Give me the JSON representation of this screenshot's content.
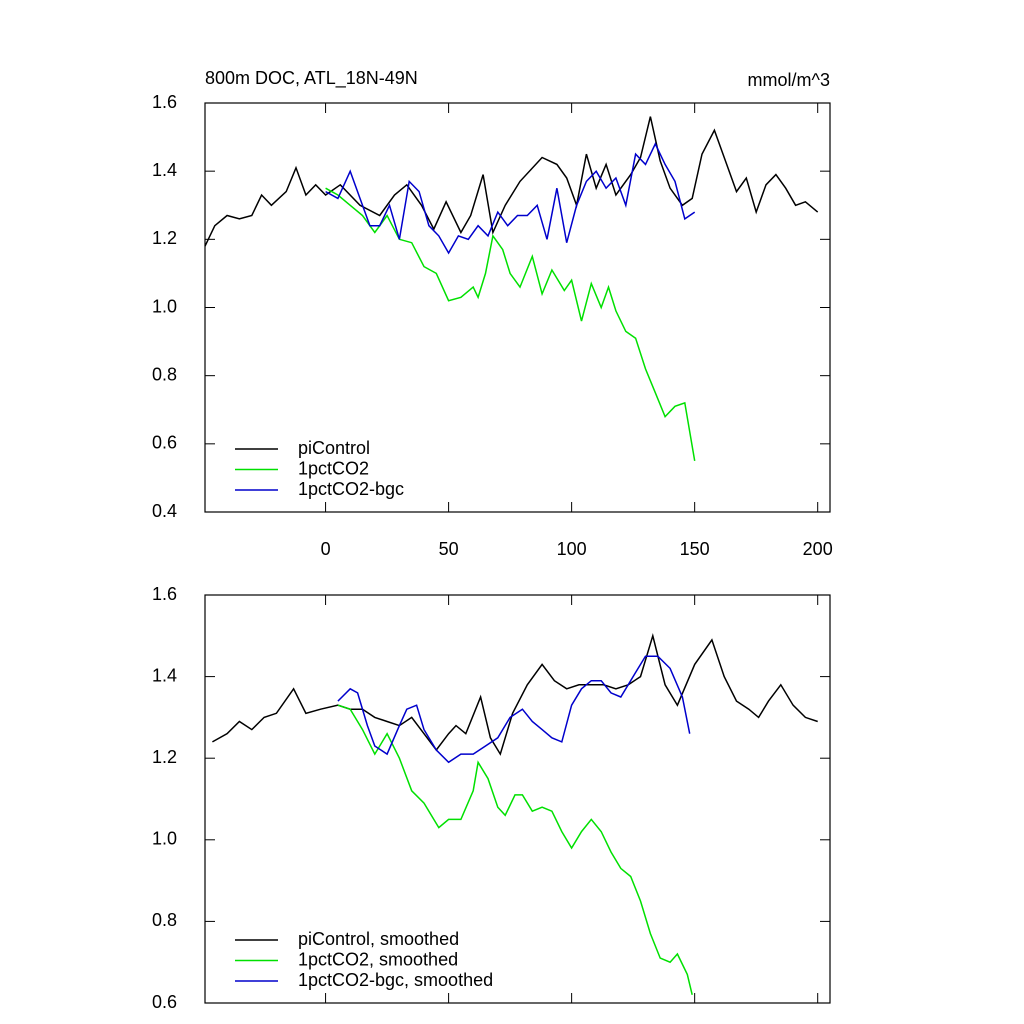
{
  "chart_data": [
    {
      "type": "line",
      "title": "800m DOC, ATL_18N-49N",
      "units": "mmol/m^3",
      "xlim": [
        -49,
        205
      ],
      "ylim": [
        0.4,
        1.6
      ],
      "xticks": [
        0,
        50,
        100,
        150,
        200
      ],
      "xtick_labels": true,
      "yticks": [
        0.4,
        0.6,
        0.8,
        {
          "value": 1.0,
          "label": "1.0"
        },
        1.2,
        1.4,
        1.6
      ],
      "legend": "lower left",
      "series": [
        {
          "name": "piControl",
          "color": "#000000",
          "x": [
            -49,
            -45,
            -40,
            -35,
            -30,
            -26,
            -22,
            -16,
            -12,
            -8,
            -4,
            0,
            6,
            14,
            22,
            28,
            33,
            39,
            44,
            49,
            55,
            59,
            64,
            68,
            73,
            79,
            88,
            94,
            98,
            102,
            106,
            110,
            114,
            118,
            124,
            128,
            132,
            136,
            140,
            145,
            149,
            153,
            158,
            163,
            167,
            171,
            175,
            179,
            183,
            187,
            191,
            195,
            200
          ],
          "values": [
            1.18,
            1.24,
            1.27,
            1.26,
            1.27,
            1.33,
            1.3,
            1.34,
            1.41,
            1.33,
            1.36,
            1.33,
            1.36,
            1.3,
            1.27,
            1.33,
            1.36,
            1.3,
            1.23,
            1.31,
            1.22,
            1.27,
            1.39,
            1.22,
            1.3,
            1.37,
            1.44,
            1.42,
            1.38,
            1.3,
            1.45,
            1.35,
            1.42,
            1.33,
            1.39,
            1.44,
            1.56,
            1.43,
            1.35,
            1.3,
            1.32,
            1.45,
            1.52,
            1.42,
            1.34,
            1.38,
            1.28,
            1.36,
            1.39,
            1.35,
            1.3,
            1.31,
            1.28
          ]
        },
        {
          "name": "1pctCO2",
          "color": "#00e000",
          "x": [
            0,
            5,
            10,
            15,
            20,
            25,
            30,
            35,
            40,
            45,
            50,
            55,
            60,
            62,
            65,
            68,
            72,
            75,
            79,
            84,
            88,
            92,
            97,
            100,
            104,
            108,
            112,
            115,
            118,
            122,
            126,
            130,
            134,
            138,
            142,
            146,
            150
          ],
          "values": [
            1.35,
            1.33,
            1.3,
            1.27,
            1.22,
            1.27,
            1.2,
            1.19,
            1.12,
            1.1,
            1.02,
            1.03,
            1.06,
            1.03,
            1.1,
            1.21,
            1.17,
            1.1,
            1.06,
            1.15,
            1.04,
            1.11,
            1.05,
            1.08,
            0.96,
            1.07,
            1.0,
            1.06,
            0.99,
            0.93,
            0.91,
            0.82,
            0.75,
            0.68,
            0.71,
            0.72,
            0.55
          ]
        },
        {
          "name": "1pctCO2-bgc",
          "color": "#0000cc",
          "x": [
            0,
            5,
            10,
            14,
            18,
            22,
            26,
            30,
            34,
            38,
            42,
            46,
            50,
            54,
            58,
            62,
            66,
            70,
            74,
            78,
            82,
            86,
            90,
            94,
            98,
            102,
            106,
            110,
            114,
            118,
            122,
            126,
            130,
            134,
            138,
            142,
            146,
            150
          ],
          "values": [
            1.34,
            1.32,
            1.4,
            1.32,
            1.24,
            1.24,
            1.3,
            1.2,
            1.37,
            1.34,
            1.24,
            1.21,
            1.16,
            1.21,
            1.2,
            1.24,
            1.21,
            1.28,
            1.24,
            1.27,
            1.27,
            1.3,
            1.2,
            1.35,
            1.19,
            1.3,
            1.37,
            1.4,
            1.35,
            1.38,
            1.3,
            1.45,
            1.42,
            1.48,
            1.42,
            1.37,
            1.26,
            1.28
          ]
        }
      ]
    },
    {
      "type": "line",
      "xlim": [
        -49,
        205
      ],
      "ylim": [
        0.6,
        1.6
      ],
      "xticks": [
        0,
        50,
        100,
        150,
        200
      ],
      "xtick_labels": false,
      "yticks": [
        0.6,
        0.8,
        {
          "value": 1.0,
          "label": "1.0"
        },
        1.2,
        1.4,
        1.6
      ],
      "legend": "lower left",
      "series": [
        {
          "name": "piControl, smoothed",
          "color": "#000000",
          "x": [
            -46,
            -40,
            -35,
            -30,
            -25,
            -20,
            -13,
            -8,
            -2,
            5,
            10,
            15,
            20,
            25,
            30,
            35,
            40,
            45,
            50,
            53,
            57,
            63,
            67,
            71,
            76,
            82,
            88,
            93,
            98,
            103,
            108,
            113,
            118,
            123,
            128,
            133,
            138,
            143,
            150,
            157,
            162,
            167,
            172,
            176,
            180,
            185,
            190,
            195,
            200
          ],
          "values": [
            1.24,
            1.26,
            1.29,
            1.27,
            1.3,
            1.31,
            1.37,
            1.31,
            1.32,
            1.33,
            1.32,
            1.32,
            1.3,
            1.29,
            1.28,
            1.3,
            1.26,
            1.22,
            1.26,
            1.28,
            1.26,
            1.35,
            1.25,
            1.21,
            1.31,
            1.38,
            1.43,
            1.39,
            1.37,
            1.38,
            1.38,
            1.38,
            1.37,
            1.38,
            1.4,
            1.5,
            1.38,
            1.33,
            1.43,
            1.49,
            1.4,
            1.34,
            1.32,
            1.3,
            1.34,
            1.38,
            1.33,
            1.3,
            1.29
          ]
        },
        {
          "name": "1pctCO2, smoothed",
          "color": "#00e000",
          "x": [
            5,
            10,
            15,
            20,
            25,
            30,
            35,
            40,
            44,
            46,
            50,
            55,
            60,
            62,
            66,
            70,
            73,
            77,
            80,
            84,
            88,
            92,
            96,
            100,
            104,
            108,
            112,
            116,
            120,
            124,
            128,
            132,
            136,
            140,
            143,
            147,
            149
          ],
          "values": [
            1.33,
            1.32,
            1.27,
            1.21,
            1.26,
            1.2,
            1.12,
            1.09,
            1.05,
            1.03,
            1.05,
            1.05,
            1.12,
            1.19,
            1.15,
            1.08,
            1.06,
            1.11,
            1.11,
            1.07,
            1.08,
            1.07,
            1.02,
            0.98,
            1.02,
            1.05,
            1.02,
            0.97,
            0.93,
            0.91,
            0.85,
            0.77,
            0.71,
            0.7,
            0.72,
            0.67,
            0.62
          ]
        },
        {
          "name": "1pctCO2-bgc, smoothed",
          "color": "#0000cc",
          "x": [
            5,
            10,
            13,
            17,
            20,
            25,
            30,
            33,
            37,
            40,
            45,
            50,
            55,
            60,
            65,
            70,
            75,
            80,
            84,
            88,
            92,
            96,
            100,
            104,
            108,
            112,
            116,
            120,
            125,
            130,
            135,
            140,
            145,
            148
          ],
          "values": [
            1.34,
            1.37,
            1.36,
            1.28,
            1.23,
            1.21,
            1.28,
            1.32,
            1.33,
            1.27,
            1.22,
            1.19,
            1.21,
            1.21,
            1.23,
            1.25,
            1.3,
            1.32,
            1.29,
            1.27,
            1.25,
            1.24,
            1.33,
            1.37,
            1.39,
            1.39,
            1.36,
            1.35,
            1.4,
            1.45,
            1.45,
            1.42,
            1.35,
            1.26
          ]
        }
      ]
    }
  ]
}
